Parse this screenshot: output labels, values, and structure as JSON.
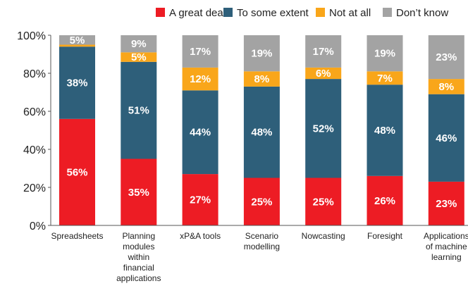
{
  "chart_data": {
    "type": "bar",
    "stacked": true,
    "categories": [
      "Spreadsheets",
      "Planning modules within financial applications",
      "xP&A tools",
      "Scenario modelling",
      "Nowcasting",
      "Foresight",
      "Applications of machine learning"
    ],
    "category_lines": [
      [
        "Spreadsheets"
      ],
      [
        "Planning",
        "modules",
        "within",
        "financial",
        "applications"
      ],
      [
        "xP&A tools"
      ],
      [
        "Scenario",
        "modelling"
      ],
      [
        "Nowcasting"
      ],
      [
        "Foresight"
      ],
      [
        "Applications",
        "of machine",
        "learning"
      ]
    ],
    "series": [
      {
        "name": "A great deal",
        "color": "#ed1c24",
        "values": [
          56,
          35,
          27,
          25,
          25,
          26,
          23
        ]
      },
      {
        "name": "To some extent",
        "color": "#2e5f7a",
        "values": [
          38,
          51,
          44,
          48,
          52,
          48,
          46
        ]
      },
      {
        "name": "Not at all",
        "color": "#f9a61a",
        "values": [
          1,
          5,
          12,
          8,
          6,
          7,
          8
        ]
      },
      {
        "name": "Don’t know",
        "color": "#a3a3a3",
        "values": [
          5,
          9,
          17,
          19,
          17,
          19,
          23
        ]
      }
    ],
    "labels": [
      [
        "56%",
        "35%",
        "27%",
        "25%",
        "25%",
        "26%",
        "23%"
      ],
      [
        "38%",
        "51%",
        "44%",
        "48%",
        "52%",
        "48%",
        "46%"
      ],
      [
        "",
        "5%",
        "12%",
        "8%",
        "6%",
        "7%",
        "8%"
      ],
      [
        "5%",
        "9%",
        "17%",
        "19%",
        "17%",
        "19%",
        "23%"
      ]
    ],
    "y_ticks": [
      "0%",
      "20%",
      "40%",
      "60%",
      "80%",
      "100%"
    ],
    "ylim": [
      0,
      100
    ],
    "grid": false,
    "legend_position": "top"
  }
}
